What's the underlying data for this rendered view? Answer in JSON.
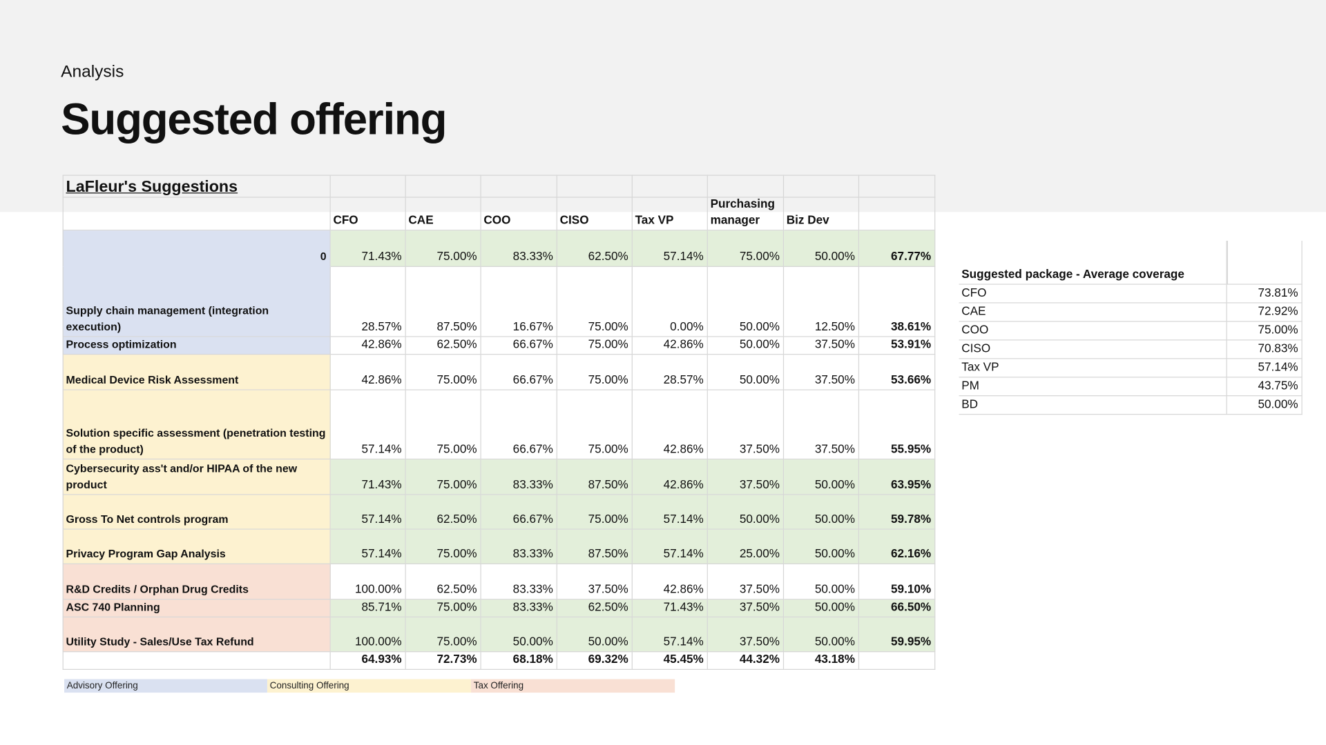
{
  "header": {
    "kicker": "Analysis",
    "title": "Suggested offering"
  },
  "table": {
    "title": "LaFleur's Suggestions",
    "columns": [
      "CFO",
      "CAE",
      "COO",
      "CISO",
      "Tax VP",
      "Purchasing manager",
      "Biz Dev"
    ],
    "sections": [
      {
        "name": "Advisory Offering",
        "color": "#dae1f1",
        "rows": [
          {
            "label": "0",
            "values": [
              "71.43%",
              "75.00%",
              "83.33%",
              "62.50%",
              "57.14%",
              "75.00%",
              "50.00%"
            ],
            "total": "67.77%",
            "fill": "#e3efda"
          },
          {
            "label": "Supply chain management (integration execution)",
            "values": [
              "28.57%",
              "87.50%",
              "16.67%",
              "75.00%",
              "0.00%",
              "50.00%",
              "12.50%"
            ],
            "total": "38.61%"
          },
          {
            "label": "Process optimization",
            "values": [
              "42.86%",
              "62.50%",
              "66.67%",
              "75.00%",
              "42.86%",
              "50.00%",
              "37.50%"
            ],
            "total": "53.91%"
          }
        ]
      },
      {
        "name": "Consulting Offering",
        "color": "#fdf2d0",
        "rows": [
          {
            "label": "Medical Device Risk Assessment",
            "values": [
              "42.86%",
              "75.00%",
              "66.67%",
              "75.00%",
              "28.57%",
              "50.00%",
              "37.50%"
            ],
            "total": "53.66%"
          },
          {
            "label": "Solution specific assessment (penetration testing of the product)",
            "values": [
              "57.14%",
              "75.00%",
              "66.67%",
              "75.00%",
              "42.86%",
              "37.50%",
              "37.50%"
            ],
            "total": "55.95%"
          },
          {
            "label": "Cybersecurity ass't and/or HIPAA of the new product",
            "values": [
              "71.43%",
              "75.00%",
              "83.33%",
              "87.50%",
              "42.86%",
              "37.50%",
              "50.00%"
            ],
            "total": "63.95%",
            "fill": "#e3efda"
          },
          {
            "label": "Gross To Net controls program",
            "values": [
              "57.14%",
              "62.50%",
              "66.67%",
              "75.00%",
              "57.14%",
              "50.00%",
              "50.00%"
            ],
            "total": "59.78%",
            "fill": "#e3efda"
          },
          {
            "label": "Privacy Program Gap Analysis",
            "values": [
              "57.14%",
              "75.00%",
              "83.33%",
              "87.50%",
              "57.14%",
              "25.00%",
              "50.00%"
            ],
            "total": "62.16%",
            "fill": "#e3efda"
          }
        ]
      },
      {
        "name": "Tax Offering",
        "color": "#f9e0d4",
        "rows": [
          {
            "label": "R&D Credits / Orphan Drug Credits",
            "values": [
              "100.00%",
              "62.50%",
              "83.33%",
              "37.50%",
              "42.86%",
              "37.50%",
              "50.00%"
            ],
            "total": "59.10%"
          },
          {
            "label": "ASC 740 Planning",
            "values": [
              "85.71%",
              "75.00%",
              "83.33%",
              "62.50%",
              "71.43%",
              "37.50%",
              "50.00%"
            ],
            "total": "66.50%",
            "fill": "#e3efda"
          },
          {
            "label": "Utility Study - Sales/Use Tax Refund",
            "values": [
              "100.00%",
              "75.00%",
              "50.00%",
              "50.00%",
              "57.14%",
              "37.50%",
              "50.00%"
            ],
            "total": "59.95%",
            "fill": "#e3efda"
          }
        ]
      }
    ],
    "totals": [
      "64.93%",
      "72.73%",
      "68.18%",
      "69.32%",
      "45.45%",
      "44.32%",
      "43.18%"
    ]
  },
  "package": {
    "title": "Suggested package - Average coverage",
    "rows": [
      [
        "CFO",
        "73.81%"
      ],
      [
        "CAE",
        "72.92%"
      ],
      [
        "COO",
        "75.00%"
      ],
      [
        "CISO",
        "70.83%"
      ],
      [
        "Tax VP",
        "57.14%"
      ],
      [
        "PM",
        "43.75%"
      ],
      [
        "BD",
        "50.00%"
      ]
    ]
  }
}
